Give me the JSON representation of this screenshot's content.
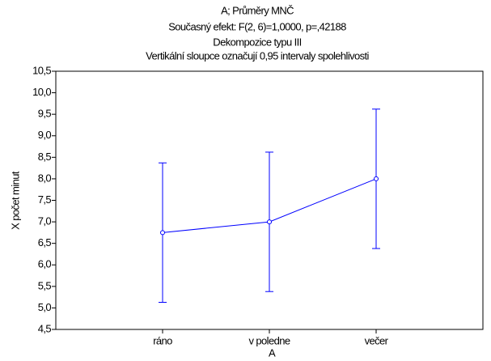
{
  "chart_data": {
    "type": "line",
    "title": "A; Průměry MNČ",
    "subtitles": [
      "Současný efekt: F(2, 6)=1,0000, p=,42188",
      "Dekompozice typu III",
      "Vertikální sloupce označují 0,95 intervaly spolehlivosti"
    ],
    "x_label": "A",
    "y_label": "X počet minut",
    "categories": [
      "ráno",
      "v poledne",
      "večer"
    ],
    "values": [
      6.75,
      7.0,
      8.0
    ],
    "errors": [
      1.62,
      1.62,
      1.62
    ],
    "color": "#0000ff",
    "ylim": [
      4.5,
      10.5
    ],
    "yticks": [
      {
        "value": 4.5,
        "label": "4,5"
      },
      {
        "value": 5,
        "label": "5,0"
      },
      {
        "value": 5.5,
        "label": "5,5"
      },
      {
        "value": 6,
        "label": "6,0"
      },
      {
        "value": 6.5,
        "label": "6,5"
      },
      {
        "value": 7,
        "label": "7,0"
      },
      {
        "value": 7.5,
        "label": "7,5"
      },
      {
        "value": 8,
        "label": "8,0"
      },
      {
        "value": 8.5,
        "label": "8,5"
      },
      {
        "value": 9,
        "label": "9,0"
      },
      {
        "value": 9.5,
        "label": "9,5"
      },
      {
        "value": 10,
        "label": "10,0"
      },
      {
        "value": 10.5,
        "label": "10,5"
      }
    ]
  }
}
